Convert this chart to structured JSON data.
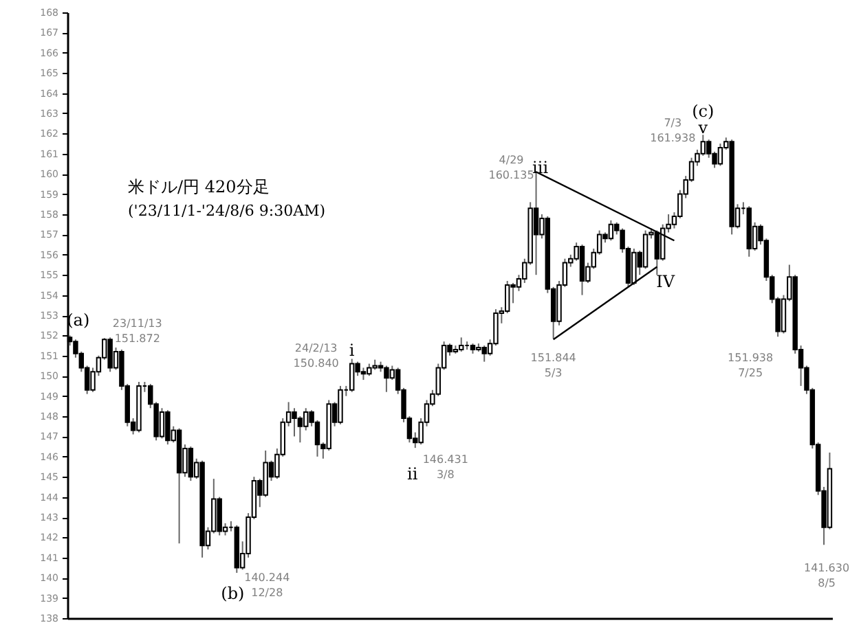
{
  "chart_data": {
    "type": "candlestick",
    "title": "米ドル/円 420分足",
    "subtitle": "('23/11/1-'24/8/6 9:30AM)",
    "color": "#000000",
    "tick_labels": "y",
    "categories": [
      null,
      null,
      null,
      null,
      null,
      null,
      null,
      null,
      null,
      null,
      null,
      null,
      null,
      null,
      null,
      null,
      null,
      null,
      null,
      null,
      null,
      null,
      null,
      null,
      null,
      null,
      null,
      null,
      null,
      null,
      null,
      null,
      null,
      null,
      null,
      null,
      null,
      null,
      null,
      null,
      null,
      null,
      null,
      null,
      null,
      null,
      null,
      null,
      null,
      null,
      null,
      null,
      null,
      null,
      null,
      null,
      null,
      null,
      null,
      null,
      null,
      null,
      null,
      null,
      null,
      null,
      null,
      null,
      null,
      null,
      null,
      null,
      null,
      null,
      null,
      null,
      null,
      null,
      null,
      null,
      null,
      null,
      null,
      null,
      null,
      null,
      null,
      null,
      null,
      null,
      null,
      null,
      null,
      null,
      null,
      null,
      null,
      null,
      null,
      null,
      null,
      null,
      null,
      null,
      null,
      null,
      null,
      null,
      null,
      null,
      null,
      null,
      null,
      null,
      null,
      null,
      null,
      null,
      null,
      null,
      null,
      null,
      null,
      null,
      null,
      null,
      null,
      null,
      null,
      null,
      null,
      null,
      null
    ],
    "ohlc": [
      [
        151.9,
        152.0,
        151.5,
        151.7
      ],
      [
        151.7,
        151.8,
        150.9,
        151.1
      ],
      [
        151.1,
        151.2,
        150.2,
        150.4
      ],
      [
        150.4,
        150.5,
        149.1,
        149.3
      ],
      [
        149.3,
        150.4,
        149.2,
        150.2
      ],
      [
        150.2,
        151.0,
        150.0,
        150.9
      ],
      [
        150.9,
        151.872,
        150.8,
        151.8
      ],
      [
        151.8,
        151.9,
        150.2,
        150.4
      ],
      [
        150.4,
        151.4,
        150.3,
        151.2
      ],
      [
        151.2,
        151.3,
        149.3,
        149.5
      ],
      [
        149.5,
        149.6,
        147.5,
        147.7
      ],
      [
        147.7,
        147.9,
        147.1,
        147.3
      ],
      [
        147.3,
        149.7,
        147.2,
        149.5
      ],
      [
        149.5,
        149.7,
        149.2,
        149.5
      ],
      [
        149.5,
        149.6,
        148.4,
        148.6
      ],
      [
        148.6,
        148.7,
        146.8,
        147.0
      ],
      [
        147.0,
        148.4,
        146.9,
        148.2
      ],
      [
        148.2,
        148.3,
        146.6,
        146.8
      ],
      [
        146.8,
        147.5,
        146.7,
        147.3
      ],
      [
        147.3,
        147.4,
        141.7,
        145.2
      ],
      [
        145.2,
        146.6,
        145.0,
        146.4
      ],
      [
        146.4,
        146.5,
        144.8,
        145.0
      ],
      [
        145.0,
        145.9,
        144.9,
        145.7
      ],
      [
        145.7,
        145.8,
        141.0,
        141.6
      ],
      [
        141.6,
        142.5,
        141.4,
        142.3
      ],
      [
        142.3,
        144.9,
        142.2,
        143.9
      ],
      [
        143.9,
        144.0,
        142.1,
        142.3
      ],
      [
        142.3,
        142.7,
        142.1,
        142.5
      ],
      [
        142.5,
        142.8,
        142.3,
        142.5
      ],
      [
        142.5,
        142.6,
        140.244,
        140.5
      ],
      [
        140.5,
        141.8,
        140.4,
        141.2
      ],
      [
        141.2,
        143.2,
        141.0,
        143.0
      ],
      [
        143.0,
        145.0,
        142.9,
        144.8
      ],
      [
        144.8,
        144.9,
        143.5,
        144.1
      ],
      [
        144.1,
        146.3,
        144.0,
        145.7
      ],
      [
        145.7,
        145.8,
        144.8,
        145.0
      ],
      [
        145.0,
        146.4,
        144.9,
        146.1
      ],
      [
        146.1,
        147.9,
        146.0,
        147.7
      ],
      [
        147.7,
        148.7,
        147.5,
        148.2
      ],
      [
        148.2,
        148.4,
        147.0,
        147.9
      ],
      [
        147.9,
        148.0,
        146.7,
        147.5
      ],
      [
        147.5,
        148.4,
        147.3,
        148.2
      ],
      [
        148.2,
        148.3,
        147.5,
        147.7
      ],
      [
        147.7,
        147.8,
        146.0,
        146.6
      ],
      [
        146.6,
        146.7,
        145.9,
        146.4
      ],
      [
        146.4,
        148.8,
        146.3,
        148.6
      ],
      [
        148.6,
        148.7,
        147.5,
        147.7
      ],
      [
        147.7,
        149.5,
        147.6,
        149.3
      ],
      [
        149.3,
        149.5,
        149.0,
        149.3
      ],
      [
        149.3,
        150.84,
        149.2,
        150.6
      ],
      [
        150.6,
        150.7,
        150.0,
        150.2
      ],
      [
        150.2,
        150.4,
        149.8,
        150.1
      ],
      [
        150.1,
        150.6,
        150.0,
        150.4
      ],
      [
        150.4,
        150.8,
        150.3,
        150.5
      ],
      [
        150.5,
        150.7,
        150.2,
        150.4
      ],
      [
        150.4,
        150.5,
        149.2,
        149.9
      ],
      [
        149.9,
        150.5,
        149.8,
        150.3
      ],
      [
        150.3,
        150.4,
        149.1,
        149.3
      ],
      [
        149.3,
        149.4,
        147.7,
        147.9
      ],
      [
        147.9,
        148.0,
        146.7,
        146.9
      ],
      [
        146.9,
        147.2,
        146.431,
        146.7
      ],
      [
        146.7,
        147.9,
        146.6,
        147.7
      ],
      [
        147.7,
        148.8,
        147.5,
        148.6
      ],
      [
        148.6,
        149.3,
        148.5,
        149.1
      ],
      [
        149.1,
        150.6,
        149.0,
        150.4
      ],
      [
        150.4,
        151.7,
        150.3,
        151.5
      ],
      [
        151.5,
        151.6,
        151.0,
        151.2
      ],
      [
        151.2,
        151.5,
        151.1,
        151.3
      ],
      [
        151.3,
        151.9,
        151.2,
        151.5
      ],
      [
        151.5,
        151.7,
        151.3,
        151.5
      ],
      [
        151.5,
        151.6,
        151.1,
        151.3
      ],
      [
        151.3,
        151.6,
        151.2,
        151.4
      ],
      [
        151.4,
        151.5,
        150.7,
        151.1
      ],
      [
        151.1,
        151.8,
        151.0,
        151.6
      ],
      [
        151.6,
        153.3,
        151.5,
        153.1
      ],
      [
        153.1,
        153.4,
        152.6,
        153.2
      ],
      [
        153.2,
        154.7,
        153.1,
        154.5
      ],
      [
        154.5,
        154.6,
        153.6,
        154.4
      ],
      [
        154.4,
        155.0,
        154.2,
        154.8
      ],
      [
        154.8,
        155.8,
        154.6,
        155.6
      ],
      [
        155.6,
        158.6,
        155.5,
        158.3
      ],
      [
        158.3,
        160.135,
        155.0,
        157.0
      ],
      [
        157.0,
        158.0,
        156.8,
        157.8
      ],
      [
        157.8,
        157.9,
        154.1,
        154.3
      ],
      [
        154.3,
        154.4,
        151.844,
        152.7
      ],
      [
        152.7,
        154.7,
        152.5,
        154.5
      ],
      [
        154.5,
        155.8,
        154.4,
        155.6
      ],
      [
        155.6,
        156.0,
        155.4,
        155.8
      ],
      [
        155.8,
        156.6,
        155.7,
        156.4
      ],
      [
        156.4,
        156.5,
        154.0,
        154.7
      ],
      [
        154.7,
        155.6,
        154.6,
        155.4
      ],
      [
        155.4,
        156.3,
        155.3,
        156.1
      ],
      [
        156.1,
        157.2,
        156.0,
        157.0
      ],
      [
        157.0,
        157.1,
        156.6,
        156.8
      ],
      [
        156.8,
        157.7,
        156.7,
        157.5
      ],
      [
        157.5,
        157.6,
        157.0,
        157.2
      ],
      [
        157.2,
        157.3,
        156.1,
        156.3
      ],
      [
        156.3,
        156.4,
        154.4,
        154.6
      ],
      [
        154.6,
        156.3,
        154.5,
        156.1
      ],
      [
        156.1,
        156.2,
        155.0,
        155.4
      ],
      [
        155.4,
        157.2,
        155.3,
        157.0
      ],
      [
        157.0,
        157.3,
        156.8,
        157.1
      ],
      [
        157.1,
        157.2,
        155.0,
        155.8
      ],
      [
        155.8,
        157.5,
        155.7,
        157.3
      ],
      [
        157.3,
        158.0,
        157.1,
        157.5
      ],
      [
        157.5,
        158.1,
        157.3,
        157.9
      ],
      [
        157.9,
        159.2,
        157.8,
        159.0
      ],
      [
        159.0,
        159.9,
        158.8,
        159.7
      ],
      [
        159.7,
        160.8,
        159.6,
        160.6
      ],
      [
        160.6,
        161.2,
        160.4,
        161.0
      ],
      [
        161.0,
        161.938,
        160.9,
        161.6
      ],
      [
        161.6,
        161.7,
        160.8,
        161.0
      ],
      [
        161.0,
        161.1,
        160.3,
        160.5
      ],
      [
        160.5,
        161.5,
        160.4,
        161.3
      ],
      [
        161.3,
        161.8,
        161.2,
        161.6
      ],
      [
        161.6,
        161.7,
        157.0,
        157.4
      ],
      [
        157.4,
        158.5,
        157.3,
        158.3
      ],
      [
        158.3,
        158.6,
        158.0,
        158.3
      ],
      [
        158.3,
        158.4,
        155.9,
        156.3
      ],
      [
        156.3,
        157.6,
        156.2,
        157.4
      ],
      [
        157.4,
        157.5,
        156.5,
        156.7
      ],
      [
        156.7,
        156.8,
        154.7,
        154.9
      ],
      [
        154.9,
        155.0,
        153.6,
        153.8
      ],
      [
        153.8,
        153.9,
        151.938,
        152.2
      ],
      [
        152.2,
        154.0,
        152.1,
        153.8
      ],
      [
        153.8,
        155.5,
        153.7,
        154.9
      ],
      [
        154.9,
        155.0,
        151.1,
        151.3
      ],
      [
        151.3,
        151.5,
        149.5,
        150.4
      ],
      [
        150.4,
        150.5,
        149.1,
        149.3
      ],
      [
        149.3,
        149.4,
        146.4,
        146.6
      ],
      [
        146.6,
        146.7,
        144.1,
        144.3
      ],
      [
        144.3,
        144.5,
        141.63,
        142.5
      ],
      [
        142.5,
        146.2,
        142.4,
        145.4
      ]
    ],
    "series": [
      {
        "type": "line",
        "color": "#000000",
        "values": [
          null,
          null,
          null,
          null,
          null,
          null,
          null,
          null,
          null,
          null,
          null,
          null,
          null,
          null,
          null,
          null,
          null,
          null,
          null,
          null,
          null,
          null,
          null,
          null,
          null,
          null,
          null,
          null,
          null,
          null,
          null,
          null,
          null,
          null,
          null,
          null,
          null,
          null,
          null,
          null,
          null,
          null,
          null,
          null,
          null,
          null,
          null,
          null,
          null,
          null,
          null,
          null,
          null,
          null,
          null,
          null,
          null,
          null,
          null,
          null,
          null,
          null,
          null,
          null,
          null,
          null,
          null,
          null,
          null,
          null,
          null,
          null,
          null,
          null,
          null,
          null,
          null,
          null,
          null,
          null,
          null,
          160.1,
          null,
          null,
          null,
          null,
          null,
          null,
          null,
          null,
          null,
          null,
          null,
          null,
          null,
          null,
          null,
          null,
          null,
          null,
          null,
          null,
          null,
          null,
          null,
          156.7,
          null,
          null,
          null,
          null,
          null,
          null,
          null,
          null,
          null,
          null,
          null,
          null,
          null,
          null,
          null,
          null,
          null,
          null,
          null,
          null,
          null,
          null,
          null,
          null,
          null,
          null,
          null
        ]
      },
      {
        "type": "line",
        "color": "#000000",
        "values": [
          null,
          null,
          null,
          null,
          null,
          null,
          null,
          null,
          null,
          null,
          null,
          null,
          null,
          null,
          null,
          null,
          null,
          null,
          null,
          null,
          null,
          null,
          null,
          null,
          null,
          null,
          null,
          null,
          null,
          null,
          null,
          null,
          null,
          null,
          null,
          null,
          null,
          null,
          null,
          null,
          null,
          null,
          null,
          null,
          null,
          null,
          null,
          null,
          null,
          null,
          null,
          null,
          null,
          null,
          null,
          null,
          null,
          null,
          null,
          null,
          null,
          null,
          null,
          null,
          null,
          null,
          null,
          null,
          null,
          null,
          null,
          null,
          null,
          null,
          null,
          null,
          null,
          null,
          null,
          null,
          null,
          null,
          null,
          null,
          151.8,
          null,
          null,
          null,
          null,
          null,
          null,
          null,
          null,
          null,
          null,
          null,
          null,
          null,
          null,
          null,
          null,
          null,
          155.4,
          null,
          null,
          null,
          null,
          null,
          null,
          null,
          null,
          null,
          null,
          null,
          null,
          null,
          null,
          null,
          null,
          null,
          null,
          null,
          null,
          null,
          null,
          null,
          null,
          null,
          null,
          null,
          null,
          null,
          null
        ]
      }
    ],
    "ylim": [
      138,
      168
    ],
    "yticks": [
      138,
      139,
      140,
      141,
      142,
      143,
      144,
      145,
      146,
      147,
      148,
      149,
      150,
      151,
      152,
      153,
      154,
      155,
      156,
      157,
      158,
      159,
      160,
      161,
      162,
      163,
      164,
      165,
      166,
      167,
      168
    ],
    "annotations": [
      "(a)",
      "23/11/13\n151.872",
      "(b)",
      "140.244\n12/28",
      "24/2/13\n150.840",
      "i",
      "ii",
      "146.431\n3/8",
      "4/29\n160.135",
      "iii",
      "151.844\n5/3",
      "IV",
      "(c)",
      "v",
      "7/3\n161.938",
      "151.938\n7/25",
      "141.630\n8/5"
    ]
  }
}
